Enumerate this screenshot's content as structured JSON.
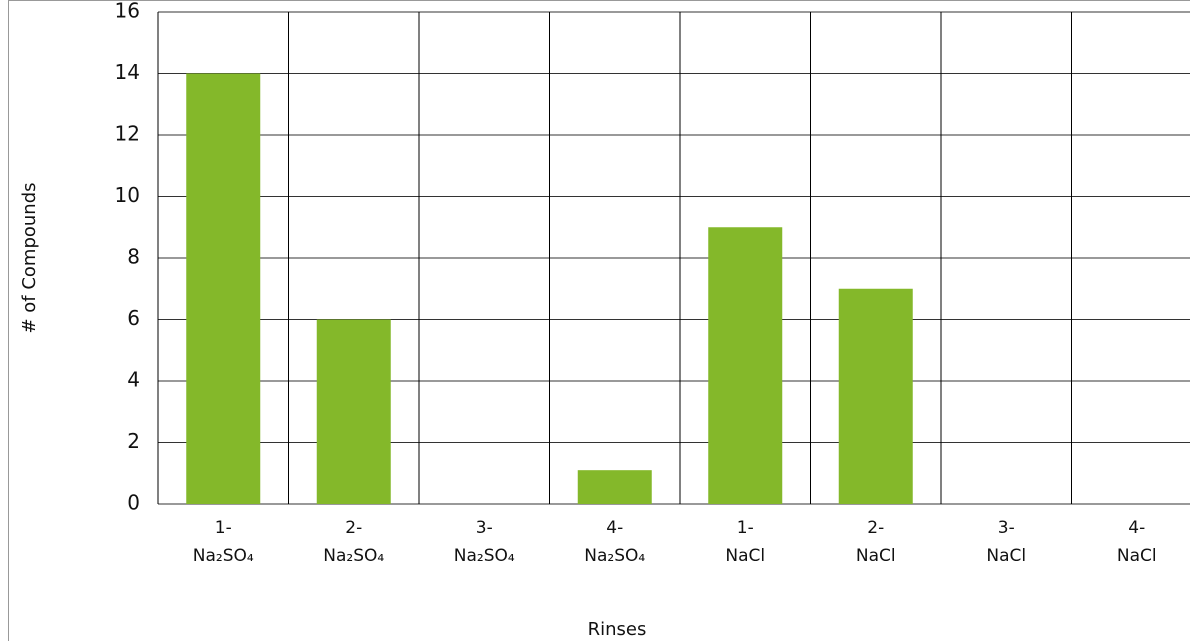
{
  "chart_data": {
    "type": "bar",
    "x_label": "Rinses",
    "y_label": "# of Compounds",
    "categories": [
      "1-\nNa₂SO₄",
      "2-\nNa₂SO₄",
      "3-\nNa₂SO₄",
      "4-\nNa₂SO₄",
      "1-\nNaCl",
      "2-\nNaCl",
      "3-\nNaCl",
      "4-\nNaCl"
    ],
    "values": [
      14,
      6,
      0,
      1.1,
      9,
      7,
      0,
      0
    ],
    "color": "#84b82a",
    "ylim": [
      0,
      16
    ],
    "yticks": [
      0,
      2,
      4,
      6,
      8,
      10,
      12,
      14,
      16
    ],
    "grid": true
  }
}
